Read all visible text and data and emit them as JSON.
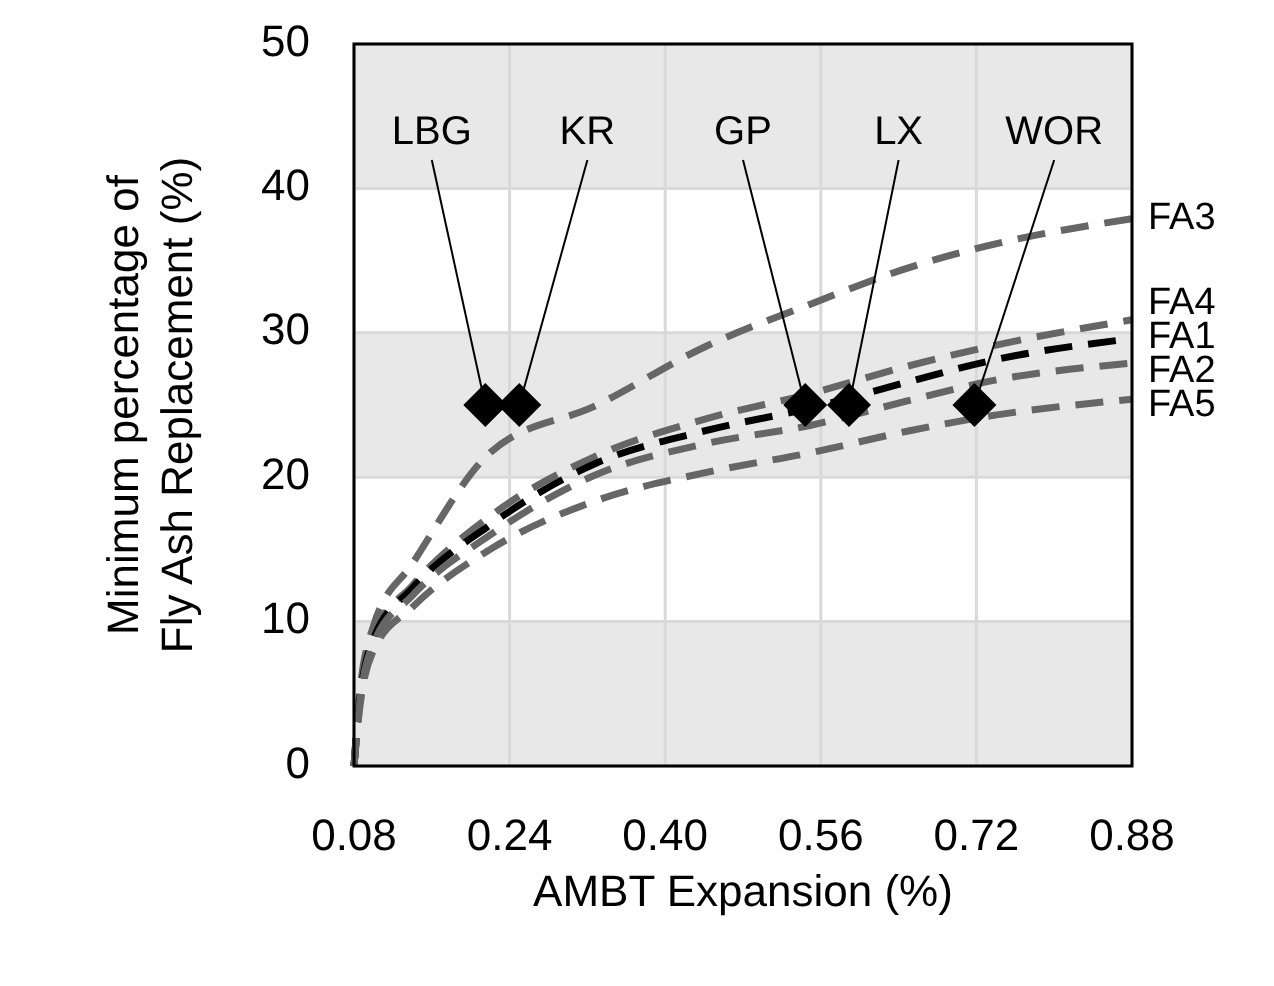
{
  "chart_data": {
    "type": "line",
    "xlabel": "AMBT Expansion (%)",
    "ylabel": "Minimum percentage of\nFly Ash Replacement (%)",
    "x": [
      0.08,
      0.085,
      0.1,
      0.14,
      0.22,
      0.33,
      0.44,
      0.55,
      0.65,
      0.73,
      0.88
    ],
    "series": [
      {
        "name": "FA3",
        "color": "#666666",
        "values": [
          0,
          4.5,
          9.7,
          14,
          21.7,
          25,
          29,
          32,
          34.5,
          36,
          37.9
        ]
      },
      {
        "name": "FA4",
        "color": "#666666",
        "values": [
          0,
          4,
          9,
          12.5,
          17.3,
          21.5,
          24,
          25.8,
          27.7,
          29,
          30.9
        ]
      },
      {
        "name": "FA1",
        "color": "#000000",
        "values": [
          0,
          4,
          8.8,
          12.3,
          16.7,
          21,
          23.2,
          24.8,
          26.6,
          28,
          29.6
        ]
      },
      {
        "name": "FA2",
        "color": "#666666",
        "values": [
          0,
          3.8,
          8.5,
          11.8,
          16,
          20.2,
          22.3,
          23.6,
          25.3,
          26.6,
          27.9
        ]
      },
      {
        "name": "FA5",
        "color": "#666666",
        "values": [
          0,
          3.5,
          8,
          11,
          15,
          18.4,
          20.3,
          21.7,
          23.2,
          24.2,
          25.4
        ]
      },
      {
        "type": "scatter",
        "marker": "diamond",
        "color": "#000000",
        "x": [
          0.215,
          0.25,
          0.544,
          0.589,
          0.718
        ],
        "values": [
          25,
          25,
          25,
          25,
          25
        ]
      }
    ],
    "line_style": "dashed",
    "marker": "none",
    "annotations": [
      {
        "text": "LBG",
        "x": 0.215,
        "y": 25
      },
      {
        "text": "KR",
        "x": 0.25,
        "y": 25
      },
      {
        "text": "GP",
        "x": 0.544,
        "y": 25
      },
      {
        "text": "LX",
        "x": 0.589,
        "y": 25
      },
      {
        "text": "WOR",
        "x": 0.718,
        "y": 25
      }
    ],
    "bands": [
      {
        "axis": "y",
        "from": 0,
        "to": 10,
        "color": "#e8e8e8"
      },
      {
        "axis": "y",
        "from": 20,
        "to": 30,
        "color": "#e8e8e8"
      },
      {
        "axis": "y",
        "from": 40,
        "to": 50,
        "color": "#e8e8e8"
      }
    ],
    "xlim": [
      0.08,
      0.88
    ],
    "xticks": [
      {
        "value": 0.08,
        "label": "0.08"
      },
      0.24,
      {
        "value": 0.4,
        "label": "0.40"
      },
      0.56,
      0.72,
      0.88
    ],
    "ylim": [
      0,
      50
    ],
    "yticks": [
      0,
      10,
      20,
      30,
      40,
      50
    ],
    "grid": true
  }
}
